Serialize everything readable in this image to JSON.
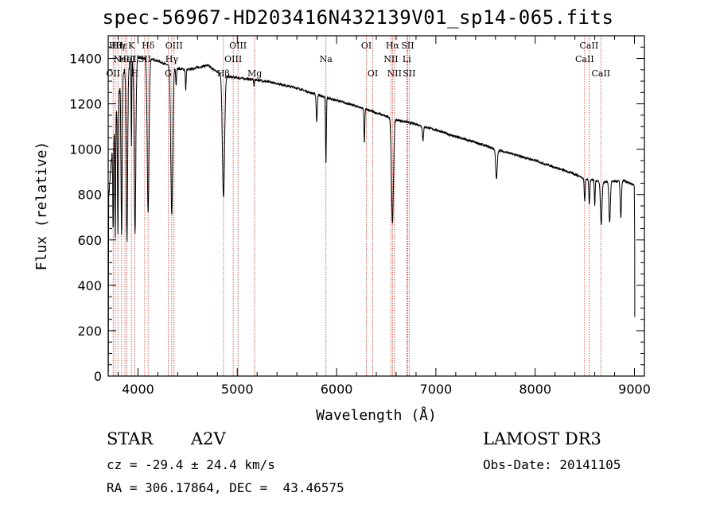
{
  "chart_data": {
    "type": "line",
    "title": "spec-56967-HD203416N432139V01_sp14-065.fits",
    "xlabel": "Wavelength (Å)",
    "ylabel": "Flux (relative)",
    "xlim": [
      3700,
      9100
    ],
    "ylim": [
      0,
      1500
    ],
    "xticks": [
      4000,
      5000,
      6000,
      7000,
      8000,
      9000
    ],
    "yticks": [
      0,
      200,
      400,
      600,
      800,
      1000,
      1200,
      1400
    ],
    "continuum": [
      [
        3700,
        760
      ],
      [
        3750,
        1050
      ],
      [
        3800,
        1250
      ],
      [
        3850,
        1330
      ],
      [
        3900,
        1360
      ],
      [
        3950,
        1390
      ],
      [
        4000,
        1405
      ],
      [
        4050,
        1400
      ],
      [
        4100,
        1400
      ],
      [
        4200,
        1390
      ],
      [
        4300,
        1370
      ],
      [
        4400,
        1355
      ],
      [
        4500,
        1350
      ],
      [
        4600,
        1360
      ],
      [
        4700,
        1370
      ],
      [
        4800,
        1340
      ],
      [
        4900,
        1320
      ],
      [
        5000,
        1315
      ],
      [
        5200,
        1305
      ],
      [
        5400,
        1290
      ],
      [
        5600,
        1270
      ],
      [
        5800,
        1240
      ],
      [
        6000,
        1215
      ],
      [
        6200,
        1190
      ],
      [
        6400,
        1160
      ],
      [
        6600,
        1130
      ],
      [
        6800,
        1110
      ],
      [
        7000,
        1085
      ],
      [
        7200,
        1055
      ],
      [
        7400,
        1030
      ],
      [
        7600,
        1000
      ],
      [
        7800,
        975
      ],
      [
        8000,
        950
      ],
      [
        8200,
        920
      ],
      [
        8400,
        890
      ],
      [
        8500,
        870
      ],
      [
        8700,
        855
      ],
      [
        8900,
        860
      ],
      [
        9000,
        840
      ]
    ],
    "absorption_lines": [
      {
        "wave": 3750,
        "depth": 420,
        "width": 4
      },
      {
        "wave": 3771,
        "depth": 520,
        "width": 4
      },
      {
        "wave": 3798,
        "depth": 600,
        "width": 5
      },
      {
        "wave": 3835,
        "depth": 680,
        "width": 6
      },
      {
        "wave": 3889,
        "depth": 750,
        "width": 7
      },
      {
        "wave": 3934,
        "depth": 350,
        "width": 3
      },
      {
        "wave": 3970,
        "depth": 780,
        "width": 8
      },
      {
        "wave": 4102,
        "depth": 680,
        "width": 9
      },
      {
        "wave": 4340,
        "depth": 650,
        "width": 10
      },
      {
        "wave": 4384,
        "depth": 80,
        "width": 4
      },
      {
        "wave": 4481,
        "depth": 90,
        "width": 4
      },
      {
        "wave": 4861,
        "depth": 540,
        "width": 11
      },
      {
        "wave": 5169,
        "depth": 30,
        "width": 3
      },
      {
        "wave": 5800,
        "depth": 120,
        "width": 5
      },
      {
        "wave": 5893,
        "depth": 300,
        "width": 4
      },
      {
        "wave": 6280,
        "depth": 150,
        "width": 4
      },
      {
        "wave": 6563,
        "depth": 460,
        "width": 10
      },
      {
        "wave": 6870,
        "depth": 60,
        "width": 6
      },
      {
        "wave": 7610,
        "depth": 130,
        "width": 8
      },
      {
        "wave": 8499,
        "depth": 100,
        "width": 5
      },
      {
        "wave": 8545,
        "depth": 110,
        "width": 5
      },
      {
        "wave": 8600,
        "depth": 110,
        "width": 4
      },
      {
        "wave": 8665,
        "depth": 190,
        "width": 8
      },
      {
        "wave": 8750,
        "depth": 180,
        "width": 7
      },
      {
        "wave": 8863,
        "depth": 160,
        "width": 6
      },
      {
        "wave": 9015,
        "depth": 180,
        "width": 6
      }
    ],
    "line_markers": [
      {
        "wave": 3750,
        "label": "OII",
        "row": 3
      },
      {
        "wave": 3771,
        "label": "Hθ",
        "row": 1
      },
      {
        "wave": 3798,
        "label": "Hη",
        "row": 1
      },
      {
        "wave": 3835,
        "label": "Hε",
        "row": 1
      },
      {
        "wave": 3869,
        "label": "NeIII",
        "row": 2
      },
      {
        "wave": 3889,
        "label": "HeI",
        "row": 2
      },
      {
        "wave": 3934,
        "label": "K",
        "row": 1
      },
      {
        "wave": 3968,
        "label": "H",
        "row": 3
      },
      {
        "wave": 4068,
        "label": "SII",
        "row": 2
      },
      {
        "wave": 4102,
        "label": "Hδ",
        "row": 1
      },
      {
        "wave": 4304,
        "label": "G",
        "row": 3
      },
      {
        "wave": 4340,
        "label": "Hγ",
        "row": 2
      },
      {
        "wave": 4363,
        "label": "OIII",
        "row": 1
      },
      {
        "wave": 4861,
        "label": "Hβ",
        "row": 3
      },
      {
        "wave": 4959,
        "label": "OIII",
        "row": 2
      },
      {
        "wave": 5007,
        "label": "OIII",
        "row": 1
      },
      {
        "wave": 5175,
        "label": "Mg",
        "row": 3
      },
      {
        "wave": 5893,
        "label": "Na",
        "row": 2
      },
      {
        "wave": 6300,
        "label": "OI",
        "row": 1
      },
      {
        "wave": 6364,
        "label": "OI",
        "row": 3
      },
      {
        "wave": 6548,
        "label": "NII",
        "row": 2
      },
      {
        "wave": 6563,
        "label": "Hα",
        "row": 1
      },
      {
        "wave": 6583,
        "label": "NII",
        "row": 3
      },
      {
        "wave": 6707,
        "label": "Li",
        "row": 2
      },
      {
        "wave": 6716,
        "label": "SII",
        "row": 1
      },
      {
        "wave": 6731,
        "label": "SII",
        "row": 3
      },
      {
        "wave": 8498,
        "label": "CaII",
        "row": 2
      },
      {
        "wave": 8542,
        "label": "CaII",
        "row": 1
      },
      {
        "wave": 8662,
        "label": "CaII",
        "row": 3
      }
    ]
  },
  "info": {
    "object_type": "STAR",
    "subclass": "A2V",
    "survey": "LAMOST DR3",
    "cz": "cz = -29.4 ± 24.4 km/s",
    "obs_date": "Obs-Date: 20141105",
    "coords": "RA = 306.17864, DEC =  43.46575"
  }
}
